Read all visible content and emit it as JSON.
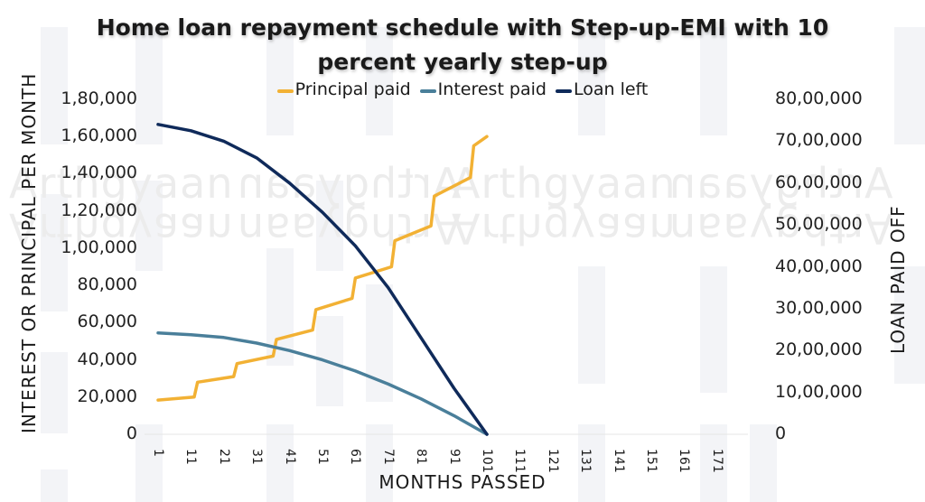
{
  "title": {
    "line1": "Home loan repayment schedule with Step-up-EMI with 10",
    "line2": "percent yearly step-up"
  },
  "legend": [
    {
      "label": "Principal paid",
      "color": "#f2b134"
    },
    {
      "label": "Interest paid",
      "color": "#4a7f9a"
    },
    {
      "label": "Loan left",
      "color": "#0f2a5a"
    }
  ],
  "axes": {
    "left_title": "INTEREST OR PRINCIPAL PER MONTH",
    "right_title": "LOAN PAID OFF",
    "x_title": "MONTHS PASSED",
    "left_ticks": [
      "1,80,000",
      "1,60,000",
      "1,40,000",
      "1,20,000",
      "1,00,000",
      "80,000",
      "60,000",
      "40,000",
      "20,000",
      "0"
    ],
    "right_ticks": [
      "80,00,000",
      "70,00,000",
      "60,00,000",
      "50,00,000",
      "40,00,000",
      "30,00,000",
      "20,00,000",
      "10,00,000",
      "0"
    ],
    "x_ticks": [
      "1",
      "11",
      "21",
      "31",
      "41",
      "51",
      "61",
      "71",
      "81",
      "91",
      "101",
      "111",
      "121",
      "131",
      "141",
      "151",
      "161",
      "171"
    ]
  },
  "watermark": "Arthgyaan",
  "chart_data": {
    "type": "line",
    "title": "Home loan repayment schedule with Step-up-EMI with 10 percent yearly step-up",
    "xlabel": "MONTHS PASSED",
    "ylabel": "INTEREST OR PRINCIPAL PER MONTH",
    "y2label": "LOAN PAID OFF",
    "xlim": [
      1,
      180
    ],
    "ylim": [
      0,
      180000
    ],
    "y2lim": [
      0,
      8000000
    ],
    "legend_position": "top",
    "grid": false,
    "x_ticks": [
      1,
      11,
      21,
      31,
      41,
      51,
      61,
      71,
      81,
      91,
      101,
      111,
      121,
      131,
      141,
      151,
      161,
      171
    ],
    "series": [
      {
        "name": "Principal paid",
        "axis": "left",
        "color": "#f2b134",
        "points": [
          [
            1,
            18400
          ],
          [
            12,
            20000
          ],
          [
            13,
            28000
          ],
          [
            24,
            31000
          ],
          [
            25,
            38000
          ],
          [
            36,
            42000
          ],
          [
            37,
            51000
          ],
          [
            48,
            56000
          ],
          [
            49,
            67000
          ],
          [
            60,
            73000
          ],
          [
            61,
            84000
          ],
          [
            72,
            90000
          ],
          [
            73,
            104000
          ],
          [
            84,
            112000
          ],
          [
            85,
            128000
          ],
          [
            96,
            138000
          ],
          [
            97,
            155000
          ],
          [
            101,
            160000
          ]
        ]
      },
      {
        "name": "Interest paid",
        "axis": "left",
        "color": "#4a7f9a",
        "points": [
          [
            1,
            54500
          ],
          [
            11,
            53500
          ],
          [
            21,
            52000
          ],
          [
            31,
            49000
          ],
          [
            41,
            45000
          ],
          [
            51,
            40000
          ],
          [
            61,
            34000
          ],
          [
            71,
            27000
          ],
          [
            81,
            19000
          ],
          [
            91,
            10000
          ],
          [
            101,
            0
          ]
        ]
      },
      {
        "name": "Loan left",
        "axis": "right",
        "color": "#0f2a5a",
        "points": [
          [
            1,
            7400000
          ],
          [
            11,
            7250000
          ],
          [
            21,
            7000000
          ],
          [
            31,
            6600000
          ],
          [
            41,
            6000000
          ],
          [
            51,
            5300000
          ],
          [
            61,
            4500000
          ],
          [
            71,
            3500000
          ],
          [
            81,
            2300000
          ],
          [
            91,
            1100000
          ],
          [
            101,
            0
          ]
        ]
      }
    ]
  }
}
